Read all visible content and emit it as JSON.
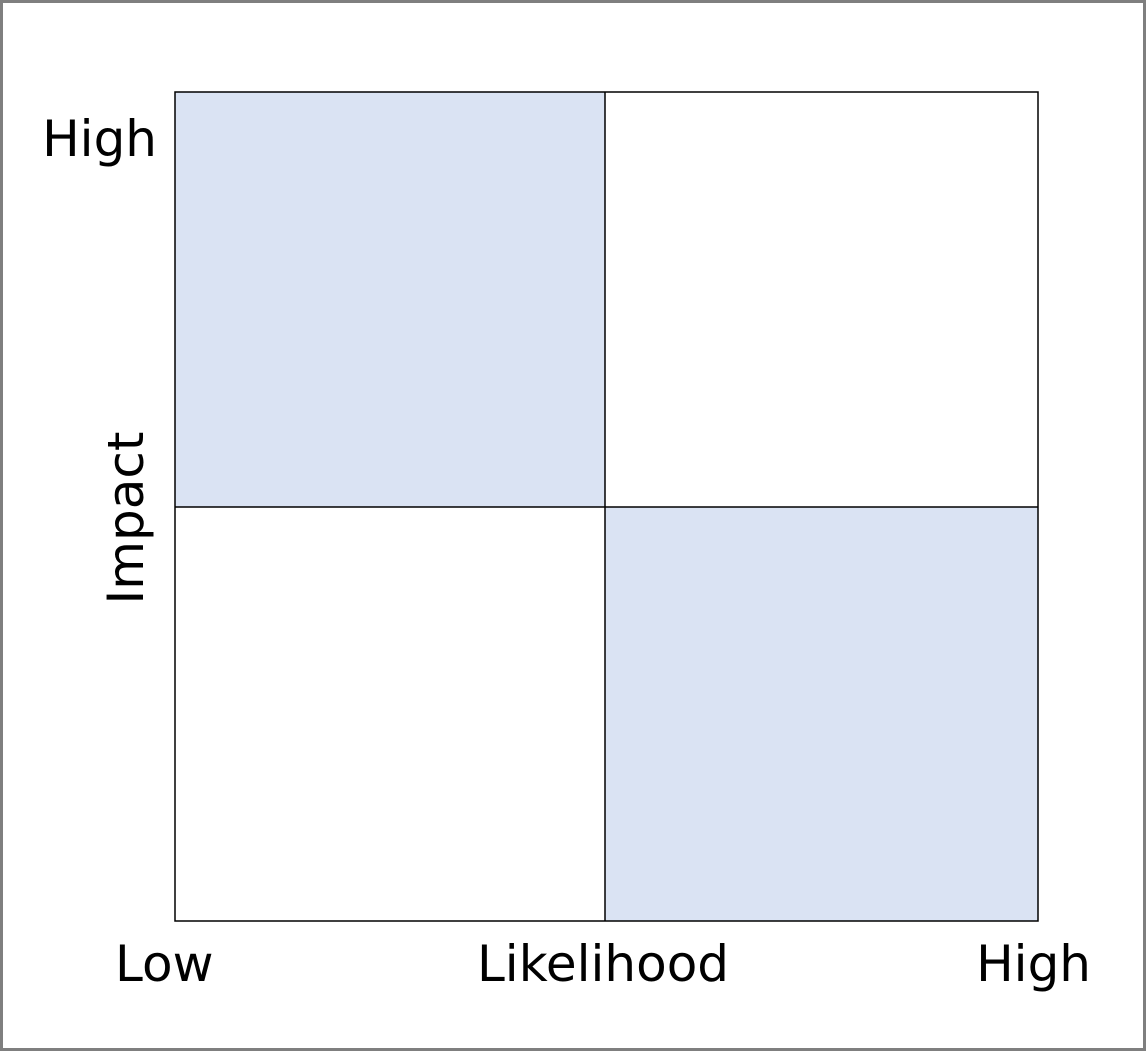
{
  "y_axis": {
    "label": "Impact",
    "high": "High"
  },
  "x_axis": {
    "label": "Likelihood",
    "low": "Low",
    "high": "High"
  }
}
